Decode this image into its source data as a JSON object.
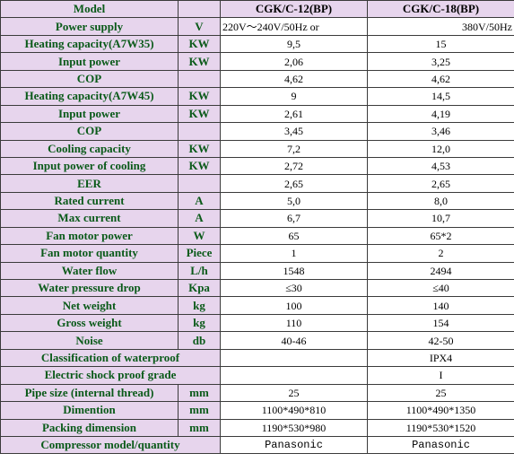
{
  "header": {
    "model": "Model",
    "unit": "",
    "col1": "CGK/C-12(BP)",
    "col2": "CGK/C-18(BP)"
  },
  "power_supply": {
    "label": "Power supply",
    "unit": "V",
    "col1": "220V～240V/50Hz or",
    "col2": "380V/50Hz"
  },
  "rows": [
    {
      "label": "Heating capacity(A7W35)",
      "unit": "KW",
      "col1": "9,5",
      "col2": "15"
    },
    {
      "label": "Input power",
      "unit": "KW",
      "col1": "2,06",
      "col2": "3,25"
    },
    {
      "label": "COP",
      "unit": "",
      "col1": "4,62",
      "col2": "4,62"
    },
    {
      "label": "Heating capacity(A7W45)",
      "unit": "KW",
      "col1": "9",
      "col2": "14,5"
    },
    {
      "label": "Input power",
      "unit": "KW",
      "col1": "2,61",
      "col2": "4,19"
    },
    {
      "label": "COP",
      "unit": "",
      "col1": "3,45",
      "col2": "3,46"
    },
    {
      "label": "Cooling capacity",
      "unit": "KW",
      "col1": "7,2",
      "col2": "12,0"
    },
    {
      "label": "Input power of cooling",
      "unit": "KW",
      "col1": "2,72",
      "col2": "4,53"
    },
    {
      "label": "EER",
      "unit": "",
      "col1": "2,65",
      "col2": "2,65"
    },
    {
      "label": "Rated current",
      "unit": "A",
      "col1": "5,0",
      "col2": "8,0"
    },
    {
      "label": "Max current",
      "unit": "A",
      "col1": "6,7",
      "col2": "10,7"
    },
    {
      "label": "Fan motor power",
      "unit": "W",
      "col1": "65",
      "col2": "65*2"
    },
    {
      "label": "Fan motor quantity",
      "unit": "Piece",
      "col1": "1",
      "col2": "2"
    },
    {
      "label": "Water flow",
      "unit": "L/h",
      "col1": "1548",
      "col2": "2494"
    },
    {
      "label": "Water pressure drop",
      "unit": "Kpa",
      "col1": "≤30",
      "col2": "≤40"
    },
    {
      "label": "Net weight",
      "unit": "kg",
      "col1": "100",
      "col2": "140"
    },
    {
      "label": "Gross weight",
      "unit": "kg",
      "col1": "110",
      "col2": "154"
    },
    {
      "label": "Noise",
      "unit": "db",
      "col1": "40-46",
      "col2": "42-50"
    }
  ],
  "waterproof": {
    "label": "Classification of waterproof",
    "value": "IPX4"
  },
  "shockproof": {
    "label": "Electric shock proof grade",
    "value": "I"
  },
  "rows2": [
    {
      "label": "Pipe size (internal thread)",
      "unit": "mm",
      "col1": "25",
      "col2": "25"
    },
    {
      "label": "Dimention",
      "unit": "mm",
      "col1": "1100*490*810",
      "col2": "1100*490*1350"
    },
    {
      "label": "Packing dimension",
      "unit": "mm",
      "col1": "1190*530*980",
      "col2": "1190*530*1520"
    }
  ],
  "compressor": {
    "label": "Compressor model/quantity",
    "col1": "Panasonic",
    "col2": "Panasonic"
  }
}
